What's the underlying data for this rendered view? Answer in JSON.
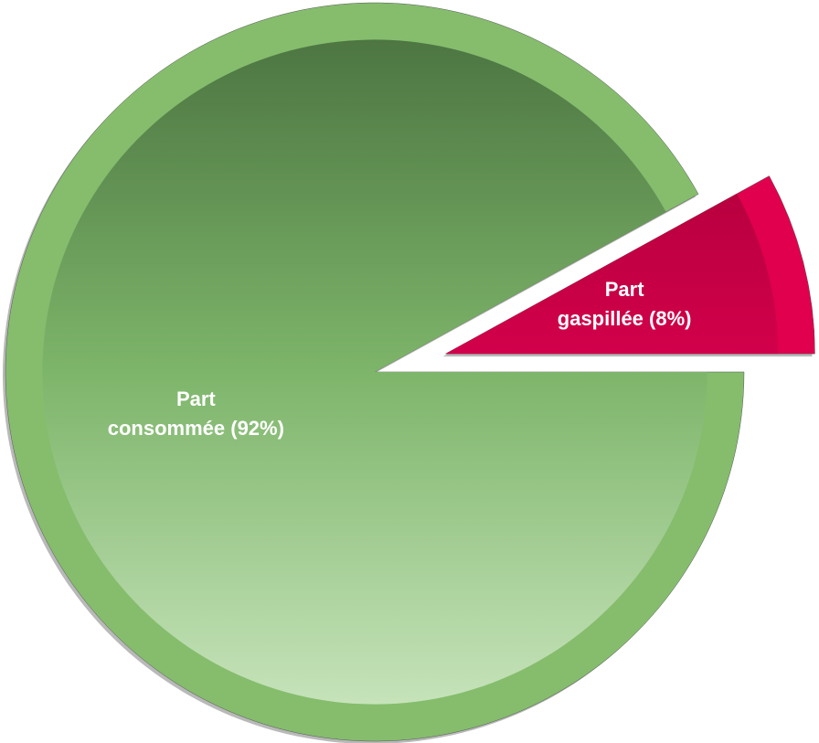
{
  "chart_data": {
    "type": "pie",
    "values": [
      92,
      8
    ],
    "value_labels": [
      "Part consommée (92%)",
      "Part gaspillée (8%)"
    ],
    "colors": [
      "#85bd6d",
      "#e0004d"
    ],
    "exploded": [
      false,
      true
    ]
  }
}
